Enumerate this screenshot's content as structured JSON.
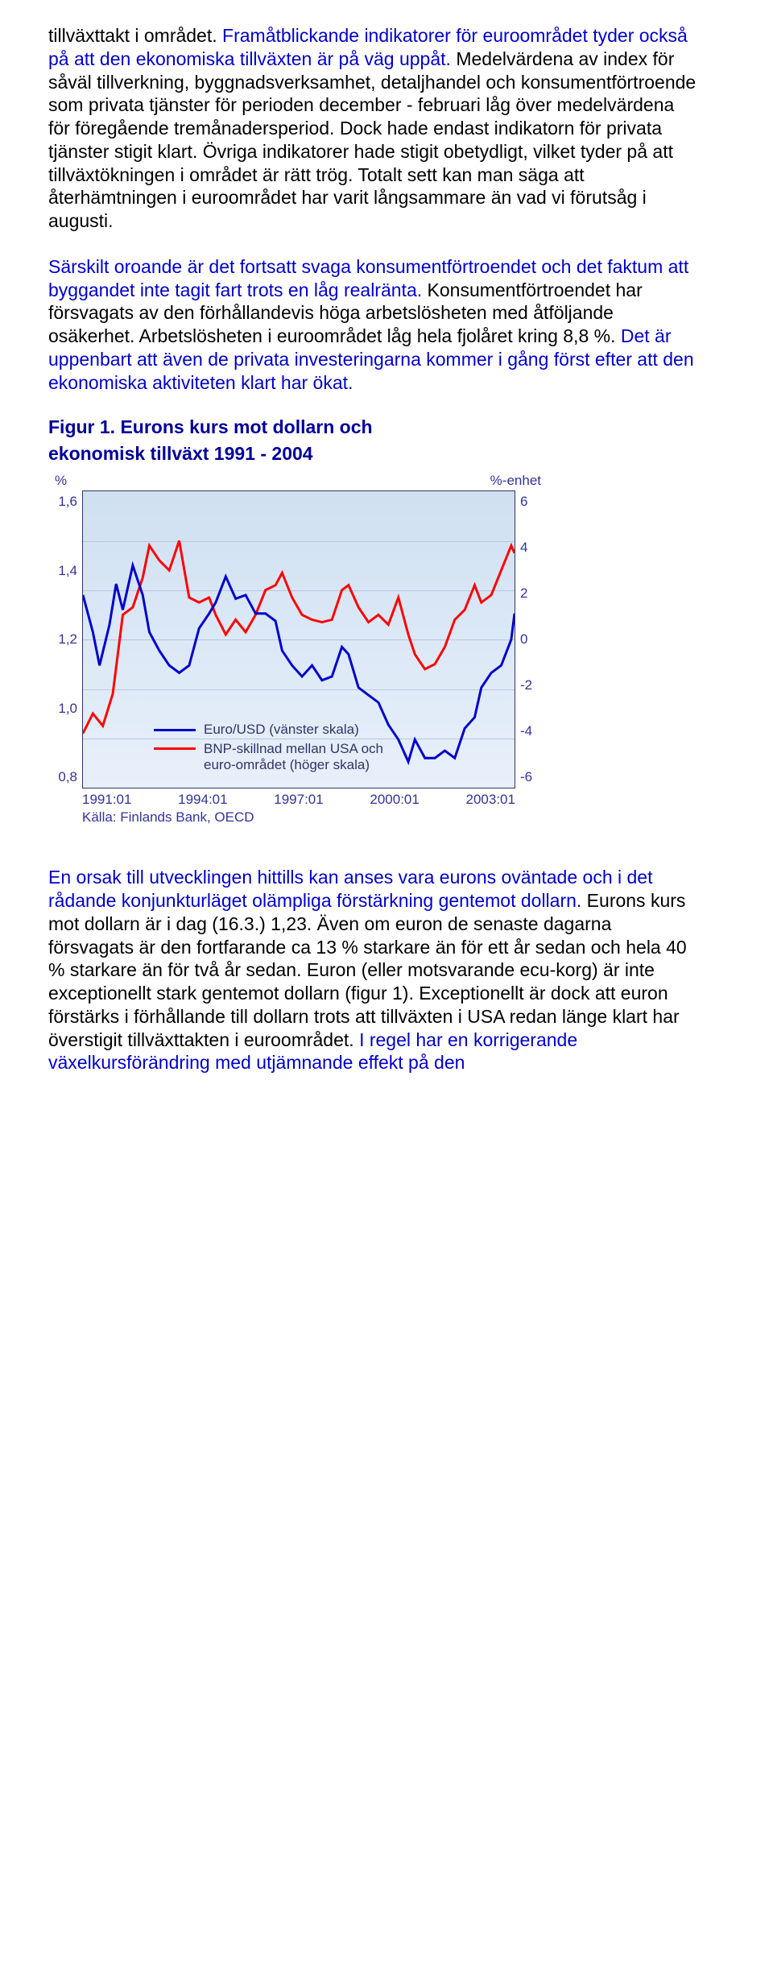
{
  "paragraphs": {
    "p1_part1": "tillväxttakt i området. ",
    "p1_part2": "Framåtblickande indikatorer för euroområdet tyder också på att den ekonomiska tillväxten är på väg uppåt.",
    "p1_part3": " Medelvärdena av index för såväl tillverkning, byggnadsverksamhet, detaljhandel och konsumentförtroende som privata tjänster för perioden december - februari låg över medelvärdena för föregående tremånadersperiod. Dock hade endast indikatorn för privata tjänster stigit klart. Övriga indikatorer hade stigit obetydligt, vilket tyder på att tillväxtökningen i området är rätt trög. Totalt sett kan man säga att återhämtningen i euroområdet har varit långsammare än vad vi förutsåg i augusti.",
    "p2_part1": "Särskilt oroande är det fortsatt svaga konsumentförtroendet och det faktum att byggandet inte tagit fart trots en låg realränta.",
    "p2_part2": " Konsumentförtroendet har försvagats av den förhållandevis höga arbetslösheten med åtföljande osäkerhet. Arbetslösheten i euroområdet låg hela fjolåret kring 8,8 %. ",
    "p2_part3": "Det är uppenbart att även de privata investeringarna kommer i gång först efter att den ekonomiska aktiviteten klart har ökat.",
    "p3_part1": "En orsak till utvecklingen hittills kan anses vara eurons oväntade och i det rådande konjunkturläget olämpliga förstärkning gentemot dollarn.",
    "p3_part2": " Eurons kurs mot dollarn är i dag (16.3.) 1,23. Även om euron de senaste dagarna försvagats är den fortfarande ca 13 % starkare än för ett år sedan och hela 40 % starkare än för två år sedan. Euron (eller motsvarande ecu-korg) är inte exceptionellt stark gentemot dollarn (figur 1). Exceptionellt är dock att euron förstärks i förhållande till dollarn trots att tillväxten i USA redan länge klart har överstigit tillväxttakten i euroområdet. ",
    "p3_part3": "I regel har en korrigerande växelkursförändring med utjämnande effekt på den"
  },
  "figure": {
    "title_line1": "Figur 1. Eurons kurs mot dollarn och",
    "title_line2": "ekonomisk tillväxt 1991 - 2004",
    "y_left_label": "%",
    "y_right_label": "%-enhet",
    "y_left_ticks": [
      "1,6",
      "1,4",
      "1,2",
      "1,0",
      "0,8"
    ],
    "y_right_ticks": [
      "6",
      "4",
      "2",
      "0",
      "-2",
      "-4",
      "-6"
    ],
    "x_ticks": [
      "1991:01",
      "1994:01",
      "1997:01",
      "2000:01",
      "2003:01"
    ],
    "source": "Källa: Finlands Bank, OECD",
    "legend": {
      "series1": "Euro/USD (vänster skala)",
      "series2_l1": "BNP-skillnad mellan USA och",
      "series2_l2": "euro-området (höger skala)"
    },
    "colors": {
      "series1": "#0000cc",
      "series2": "#ff0000",
      "plot_bg_top": "#cfe0f2",
      "plot_bg_bottom": "#e8f0fa",
      "border": "#333366",
      "grid": "#b9c7df",
      "axis_text": "#333399"
    },
    "y_left_range": [
      0.8,
      1.6
    ],
    "y_right_range": [
      -6,
      6
    ],
    "x_range": [
      1991,
      2004
    ],
    "series1_data": [
      [
        1991.0,
        1.32
      ],
      [
        1991.3,
        1.22
      ],
      [
        1991.5,
        1.13
      ],
      [
        1991.8,
        1.24
      ],
      [
        1992.0,
        1.35
      ],
      [
        1992.2,
        1.28
      ],
      [
        1992.5,
        1.4
      ],
      [
        1992.8,
        1.32
      ],
      [
        1993.0,
        1.22
      ],
      [
        1993.3,
        1.17
      ],
      [
        1993.6,
        1.13
      ],
      [
        1993.9,
        1.11
      ],
      [
        1994.2,
        1.13
      ],
      [
        1994.5,
        1.23
      ],
      [
        1994.8,
        1.27
      ],
      [
        1995.0,
        1.3
      ],
      [
        1995.3,
        1.37
      ],
      [
        1995.6,
        1.31
      ],
      [
        1995.9,
        1.32
      ],
      [
        1996.2,
        1.27
      ],
      [
        1996.5,
        1.27
      ],
      [
        1996.8,
        1.25
      ],
      [
        1997.0,
        1.17
      ],
      [
        1997.3,
        1.13
      ],
      [
        1997.6,
        1.1
      ],
      [
        1997.9,
        1.13
      ],
      [
        1998.2,
        1.09
      ],
      [
        1998.5,
        1.1
      ],
      [
        1998.8,
        1.18
      ],
      [
        1999.0,
        1.16
      ],
      [
        1999.3,
        1.07
      ],
      [
        1999.6,
        1.05
      ],
      [
        1999.9,
        1.03
      ],
      [
        2000.2,
        0.97
      ],
      [
        2000.5,
        0.93
      ],
      [
        2000.8,
        0.87
      ],
      [
        2001.0,
        0.93
      ],
      [
        2001.3,
        0.88
      ],
      [
        2001.6,
        0.88
      ],
      [
        2001.9,
        0.9
      ],
      [
        2002.2,
        0.88
      ],
      [
        2002.5,
        0.96
      ],
      [
        2002.8,
        0.99
      ],
      [
        2003.0,
        1.07
      ],
      [
        2003.3,
        1.11
      ],
      [
        2003.6,
        1.13
      ],
      [
        2003.9,
        1.2
      ],
      [
        2004.0,
        1.27
      ]
    ],
    "series2_data": [
      [
        1991.0,
        -3.8
      ],
      [
        1991.3,
        -3.0
      ],
      [
        1991.6,
        -3.5
      ],
      [
        1991.9,
        -2.2
      ],
      [
        1992.2,
        1.0
      ],
      [
        1992.5,
        1.3
      ],
      [
        1992.8,
        2.5
      ],
      [
        1993.0,
        3.8
      ],
      [
        1993.3,
        3.2
      ],
      [
        1993.6,
        2.8
      ],
      [
        1993.9,
        4.0
      ],
      [
        1994.2,
        1.7
      ],
      [
        1994.5,
        1.5
      ],
      [
        1994.8,
        1.7
      ],
      [
        1995.0,
        1.0
      ],
      [
        1995.3,
        0.2
      ],
      [
        1995.6,
        0.8
      ],
      [
        1995.9,
        0.3
      ],
      [
        1996.2,
        1.0
      ],
      [
        1996.5,
        2.0
      ],
      [
        1996.8,
        2.2
      ],
      [
        1997.0,
        2.7
      ],
      [
        1997.3,
        1.7
      ],
      [
        1997.6,
        1.0
      ],
      [
        1997.9,
        0.8
      ],
      [
        1998.2,
        0.7
      ],
      [
        1998.5,
        0.8
      ],
      [
        1998.8,
        2.0
      ],
      [
        1999.0,
        2.2
      ],
      [
        1999.3,
        1.3
      ],
      [
        1999.6,
        0.7
      ],
      [
        1999.9,
        1.0
      ],
      [
        2000.2,
        0.6
      ],
      [
        2000.5,
        1.7
      ],
      [
        2000.8,
        0.2
      ],
      [
        2001.0,
        -0.6
      ],
      [
        2001.3,
        -1.2
      ],
      [
        2001.6,
        -1.0
      ],
      [
        2001.9,
        -0.3
      ],
      [
        2002.2,
        0.8
      ],
      [
        2002.5,
        1.2
      ],
      [
        2002.8,
        2.2
      ],
      [
        2003.0,
        1.5
      ],
      [
        2003.3,
        1.8
      ],
      [
        2003.6,
        2.8
      ],
      [
        2003.9,
        3.8
      ],
      [
        2004.0,
        3.5
      ]
    ]
  }
}
